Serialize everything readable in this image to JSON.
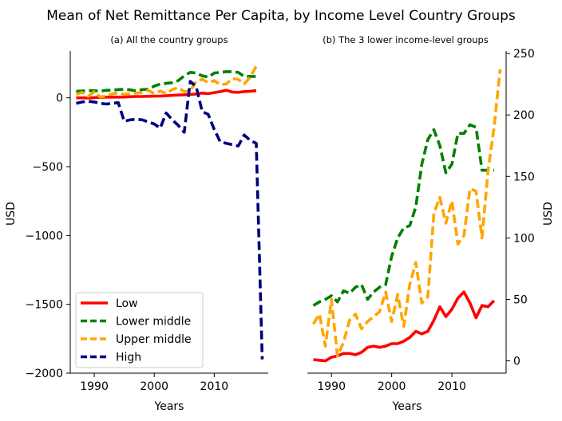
{
  "figure": {
    "suptitle": "Mean of Net Remittance Per Capita, by Income Level Country Groups"
  },
  "chart_data": [
    {
      "type": "line",
      "title": "(a) All the country groups",
      "xlabel": "Years",
      "ylabel": "USD",
      "xlim": [
        1986,
        2019
      ],
      "ylim": [
        -2000,
        340
      ],
      "x_ticks": [
        1990,
        2000,
        2010
      ],
      "y_ticks": [
        0,
        -500,
        -1000,
        -1500,
        -2000
      ],
      "y_tick_labels": [
        "0",
        "−500",
        "−1000",
        "−1500",
        "−2000"
      ],
      "y_axis_side": "left",
      "legend": {
        "placement": "lower-left"
      },
      "series": [
        {
          "name": "Low",
          "color": "#ff0000",
          "dash": "solid",
          "x": [
            1987,
            1988,
            1989,
            1990,
            1991,
            1992,
            1993,
            1994,
            1995,
            1996,
            1997,
            1998,
            1999,
            2000,
            2001,
            2002,
            2003,
            2004,
            2005,
            2006,
            2007,
            2008,
            2009,
            2010,
            2011,
            2012,
            2013,
            2014,
            2015,
            2016,
            2017
          ],
          "y": [
            0,
            0,
            -1,
            2,
            3,
            5,
            6,
            5,
            6,
            8,
            10,
            10,
            11,
            12,
            13,
            15,
            18,
            20,
            22,
            25,
            28,
            35,
            30,
            38,
            45,
            55,
            42,
            40,
            45,
            48,
            52
          ]
        },
        {
          "name": "Lower middle",
          "color": "#008000",
          "dash": "dashed",
          "x": [
            1987,
            1988,
            1989,
            1990,
            1991,
            1992,
            1993,
            1994,
            1995,
            1996,
            1997,
            1998,
            1999,
            2000,
            2001,
            2002,
            2003,
            2004,
            2005,
            2006,
            2007,
            2008,
            2009,
            2010,
            2011,
            2012,
            2013,
            2014,
            2015,
            2016,
            2017
          ],
          "y": [
            47,
            50,
            52,
            52,
            48,
            55,
            55,
            60,
            62,
            58,
            50,
            60,
            62,
            85,
            100,
            105,
            110,
            125,
            160,
            185,
            180,
            160,
            150,
            180,
            185,
            190,
            190,
            185,
            155,
            155,
            155
          ]
        },
        {
          "name": "Upper middle",
          "color": "#ffa500",
          "dash": "dashed",
          "x": [
            1987,
            1988,
            1989,
            1990,
            1991,
            1992,
            1993,
            1994,
            1995,
            1996,
            1997,
            1998,
            1999,
            2000,
            2001,
            2002,
            2003,
            2004,
            2005,
            2006,
            2007,
            2008,
            2009,
            2010,
            2011,
            2012,
            2013,
            2014,
            2015,
            2016,
            2017
          ],
          "y": [
            25,
            40,
            10,
            45,
            5,
            15,
            30,
            35,
            25,
            30,
            35,
            40,
            55,
            30,
            50,
            30,
            60,
            75,
            45,
            50,
            120,
            135,
            110,
            125,
            95,
            100,
            140,
            135,
            100,
            150,
            230
          ]
        },
        {
          "name": "High",
          "color": "#000080",
          "dash": "dashed",
          "x": [
            1987,
            1988,
            1989,
            1990,
            1991,
            1992,
            1993,
            1994,
            1995,
            1996,
            1997,
            1998,
            1999,
            2000,
            2001,
            2002,
            2003,
            2004,
            2005,
            2006,
            2007,
            2008,
            2009,
            2010,
            2011,
            2012,
            2013,
            2014,
            2015,
            2016,
            2017,
            2018
          ],
          "y": [
            -40,
            -30,
            -25,
            -30,
            -40,
            -45,
            -40,
            -35,
            -170,
            -160,
            -155,
            -160,
            -175,
            -190,
            -220,
            -110,
            -160,
            -200,
            -250,
            120,
            80,
            -100,
            -120,
            -230,
            -320,
            -330,
            -340,
            -350,
            -270,
            -310,
            -330,
            -1900
          ]
        }
      ]
    },
    {
      "type": "line",
      "title": "(b) The 3 lower income-level groups",
      "xlabel": "Years",
      "ylabel": "USD",
      "xlim": [
        1986,
        2019
      ],
      "ylim": [
        -10,
        252
      ],
      "x_ticks": [
        1990,
        2000,
        2010
      ],
      "y_ticks": [
        0,
        50,
        100,
        150,
        200,
        250
      ],
      "y_axis_side": "right",
      "series": [
        {
          "name": "Low",
          "color": "#ff0000",
          "dash": "solid",
          "x": [
            1987,
            1988,
            1989,
            1990,
            1991,
            1992,
            1993,
            1994,
            1995,
            1996,
            1997,
            1998,
            1999,
            2000,
            2001,
            2002,
            2003,
            2004,
            2005,
            2006,
            2007,
            2008,
            2009,
            2010,
            2011,
            2012,
            2013,
            2014,
            2015,
            2016,
            2017
          ],
          "y": [
            1,
            0.5,
            0,
            3,
            4,
            6,
            6,
            5,
            7,
            11,
            12,
            11,
            12,
            14,
            14,
            16,
            19,
            24,
            22,
            24,
            33,
            44,
            36,
            42,
            51,
            56,
            47,
            35,
            45,
            44,
            49
          ]
        },
        {
          "name": "Lower middle",
          "color": "#008000",
          "dash": "dashed",
          "x": [
            1987,
            1988,
            1989,
            1990,
            1991,
            1992,
            1993,
            1994,
            1995,
            1996,
            1997,
            1998,
            1999,
            2000,
            2001,
            2002,
            2003,
            2004,
            2005,
            2006,
            2007,
            2008,
            2009,
            2010,
            2011,
            2012,
            2013,
            2014,
            2015,
            2016,
            2017
          ],
          "y": [
            45,
            48,
            50,
            53,
            48,
            57,
            55,
            60,
            62,
            50,
            56,
            60,
            62,
            85,
            100,
            108,
            110,
            125,
            160,
            180,
            188,
            175,
            153,
            160,
            185,
            185,
            192,
            190,
            155,
            155,
            155
          ]
        },
        {
          "name": "Upper middle",
          "color": "#ffa500",
          "dash": "dashed",
          "x": [
            1987,
            1988,
            1989,
            1990,
            1991,
            1992,
            1993,
            1994,
            1995,
            1996,
            1997,
            1998,
            1999,
            2000,
            2001,
            2002,
            2003,
            2004,
            2005,
            2006,
            2007,
            2008,
            2009,
            2010,
            2011,
            2012,
            2013,
            2014,
            2015,
            2016,
            2017,
            2018
          ],
          "y": [
            30,
            38,
            12,
            50,
            4,
            15,
            33,
            38,
            26,
            32,
            36,
            40,
            56,
            32,
            54,
            28,
            62,
            80,
            47,
            52,
            120,
            133,
            112,
            130,
            95,
            102,
            140,
            138,
            100,
            155,
            190,
            237
          ]
        }
      ]
    }
  ]
}
